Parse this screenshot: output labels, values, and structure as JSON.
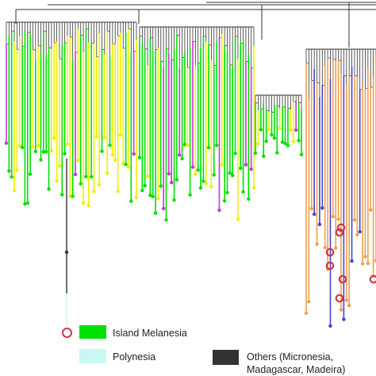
{
  "colors": {
    "island_melanesia": "#00e000",
    "polynesia": "#c8f8f2",
    "others": "#333333",
    "yellow_clade": "#f0f000",
    "magenta_clade": "#cc33dd",
    "orange_clade": "#f0a050",
    "blue_clade": "#4444cc",
    "marker_ring": "#c93a46",
    "branch": "#333333"
  },
  "legend": [
    {
      "label": "Island Melanesia",
      "color": "#00e000"
    },
    {
      "label": "Polynesia",
      "color": "#c8f8f2"
    },
    {
      "label": "Others (Micronesia,",
      "label2": "Madagascar, Madeira)",
      "color": "#333333"
    }
  ]
}
